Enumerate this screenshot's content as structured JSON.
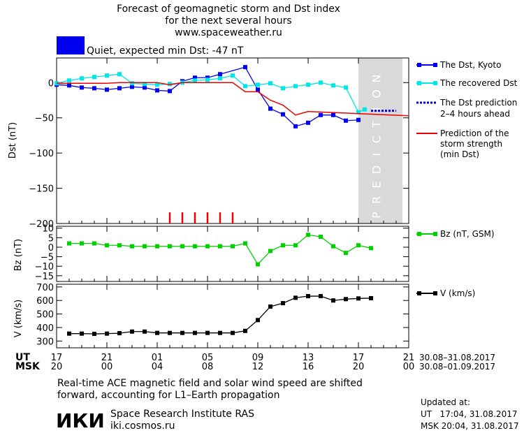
{
  "header": {
    "title_lines": [
      "Forecast of geomagnetic storm and Dst index",
      "for the next several hours",
      "www.spaceweather.ru"
    ],
    "status_color": "#0000ee",
    "status_text": "Quiet, expected min Dst: -47 nT"
  },
  "chart_data": [
    {
      "type": "line",
      "ylabel": "Dst (nT)",
      "ylim": [
        -200,
        35
      ],
      "yticks": [
        0,
        -50,
        -100,
        -150,
        -200
      ],
      "yticklabels": [
        "0",
        "−50",
        "−100",
        "−150",
        "−200"
      ],
      "xlim": [
        17,
        45
      ],
      "prediction_band": {
        "x": [
          41,
          44.5
        ],
        "label": "PREDICTION",
        "color": "#d9d9d9"
      },
      "series": [
        {
          "name": "The Dst, Kyoto",
          "color": "#0000ee",
          "marker": "square",
          "x": [
            17,
            18,
            19,
            20,
            21,
            22,
            23,
            24,
            25,
            26,
            27,
            28,
            29,
            30,
            32,
            33,
            34,
            35,
            36,
            37,
            38,
            39,
            40,
            41
          ],
          "y": [
            -3,
            -4,
            -7,
            -8,
            -10,
            -8,
            -6,
            -7,
            -11,
            -12,
            2,
            7,
            7,
            12,
            22,
            -10,
            -37,
            -45,
            -62,
            -57,
            -46,
            -46,
            -54,
            -53
          ]
        },
        {
          "name": "The recovered Dst",
          "color": "#00e5e5",
          "marker": "square",
          "x": [
            17,
            18,
            19,
            20,
            21,
            22,
            23,
            24,
            25,
            26,
            27,
            28,
            29,
            30,
            31,
            32,
            33,
            34,
            35,
            36,
            37,
            38,
            39,
            40,
            41,
            41.5
          ],
          "y": [
            -1,
            3,
            6,
            8,
            10,
            12,
            -1,
            -2,
            -3,
            -2,
            0,
            3,
            4,
            6,
            10,
            -5,
            -3,
            -1,
            -8,
            -5,
            -3,
            0,
            -4,
            -7,
            -42,
            -38
          ]
        },
        {
          "name": "Prediction of the storm strength (min Dst)",
          "color": "#ee0000",
          "marker": "none",
          "x": [
            17,
            21,
            22,
            23,
            24,
            25,
            26,
            27,
            31,
            32,
            33,
            34,
            35,
            36,
            37,
            45
          ],
          "y": [
            -1,
            -1,
            0,
            0,
            0,
            0,
            -3,
            0,
            0,
            -13,
            -13,
            -25,
            -32,
            -46,
            -41,
            -47
          ]
        }
      ],
      "prediction_line": {
        "label_lines": [
          "The Dst prediction",
          "2–4 hours ahead"
        ],
        "color": "#0000ee",
        "x": [
          42,
          44
        ],
        "y": -40
      },
      "legend_lines": {
        "storm": [
          "Prediction of the",
          "storm strength",
          "(min Dst)"
        ]
      },
      "red_markers_x": [
        26,
        27,
        28,
        29,
        30,
        31
      ]
    },
    {
      "type": "line",
      "ylabel": "Bz (nT)",
      "ylim": [
        -18,
        11
      ],
      "yticks": [
        10,
        5,
        0,
        -5,
        -10,
        -15
      ],
      "yticklabels": [
        "10",
        "5",
        "0",
        "−5",
        "−10",
        "−15"
      ],
      "series": [
        {
          "name": "Bz (nT, GSM)",
          "color": "#00d000",
          "marker": "square",
          "x": [
            18,
            19,
            20,
            21,
            22,
            23,
            24,
            25,
            26,
            27,
            28,
            29,
            30,
            31,
            32,
            33,
            34,
            35,
            36,
            37,
            38,
            39,
            40,
            41,
            42
          ],
          "y": [
            2,
            2,
            2,
            1,
            1,
            0.5,
            0.5,
            0.5,
            0.5,
            0.5,
            0.5,
            0.5,
            0.5,
            0.5,
            2,
            -9,
            -2,
            1,
            1,
            6.5,
            5.5,
            0.5,
            -3,
            1,
            -0.5
          ]
        }
      ]
    },
    {
      "type": "line",
      "ylabel": "V (km/s)",
      "ylim": [
        250,
        720
      ],
      "yticks": [
        700,
        600,
        500,
        400,
        300
      ],
      "yticklabels": [
        "700",
        "600",
        "500",
        "400",
        "300"
      ],
      "series": [
        {
          "name": "V (km/s)",
          "color": "#000000",
          "marker": "square",
          "x": [
            18,
            19,
            20,
            21,
            22,
            23,
            24,
            25,
            26,
            27,
            28,
            29,
            30,
            31,
            32,
            33,
            34,
            35,
            36,
            37,
            38,
            39,
            40,
            41,
            42
          ],
          "y": [
            355,
            355,
            353,
            355,
            358,
            370,
            370,
            360,
            360,
            360,
            360,
            360,
            360,
            360,
            375,
            455,
            555,
            580,
            620,
            632,
            632,
            600,
            610,
            615,
            617
          ]
        }
      ]
    }
  ],
  "xaxis": {
    "ticks": [
      17,
      21,
      25,
      29,
      33,
      37,
      41,
      45
    ],
    "ut_label": "UT",
    "msk_label": "MSK",
    "ut_labels": [
      "17",
      "21",
      "01",
      "05",
      "09",
      "13",
      "17",
      "21"
    ],
    "msk_labels": [
      "20",
      "00",
      "04",
      "08",
      "12",
      "16",
      "20",
      "00"
    ],
    "ut_range": "30.08–31.08.2017",
    "msk_range": "30.08–01.09.2017"
  },
  "footer": {
    "note_lines": [
      "Real-time ACE magnetic field and solar wind speed are shifted",
      "forward, accounting for L1–Earth propagation"
    ],
    "logo_text": "ИКИ",
    "institute_name": "Space Research Institute RAS",
    "institute_site": "iki.cosmos.ru",
    "updated_label": "Updated at:",
    "updated_ut": "UT   17:04, 31.08.2017",
    "updated_msk": "MSK 20:04, 31.08.2017"
  }
}
